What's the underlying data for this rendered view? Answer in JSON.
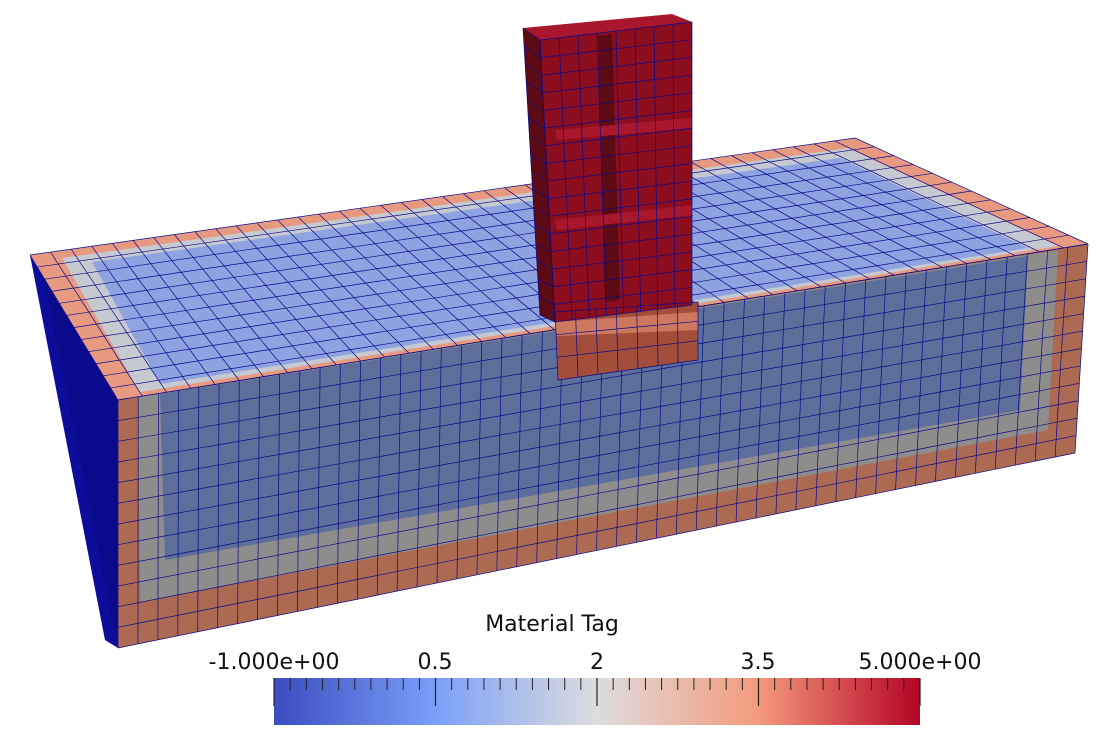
{
  "colorbar": {
    "title": "Material Tag",
    "range": [
      -1,
      5
    ],
    "tick_labels": [
      "-1.000e+00",
      "0.5",
      "2",
      "3.5",
      "5.000e+00"
    ],
    "tick_values": [
      -1,
      0.5,
      2,
      3.5,
      5
    ],
    "colormap": "cool-to-warm",
    "colors": {
      "low": "#3b4cc0",
      "mid": "#dddddd",
      "high": "#b40426"
    }
  },
  "scene": {
    "mesh_edge_color": "#0a0a8c",
    "materials": {
      "soil_inner": {
        "tag": 1,
        "color_top": "#8ea3e0",
        "color_side": "#5c6e99"
      },
      "soil_transition": {
        "tag": 2,
        "color_top": "#c6c9cf",
        "color_side": "#8e8d8c"
      },
      "soil_outer": {
        "tag": 3,
        "color_top": "#e89a80",
        "color_side": "#ad6a53"
      },
      "structure": {
        "tag": 5,
        "color": "#8c0e1e"
      },
      "side_face": {
        "tag": -1,
        "color": "#0a0a8c"
      }
    }
  }
}
